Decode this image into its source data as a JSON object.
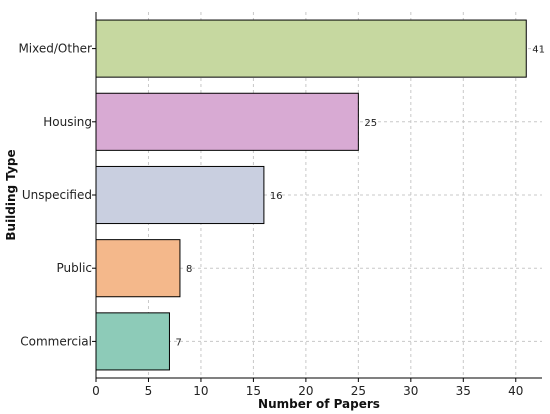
{
  "chart_data": {
    "type": "bar",
    "orientation": "horizontal",
    "categories": [
      "Mixed/Other",
      "Housing",
      "Unspecified",
      "Public",
      "Commercial"
    ],
    "values": [
      41,
      25,
      16,
      8,
      7
    ],
    "data_labels": [
      "41",
      "25",
      "16",
      "8",
      "7"
    ],
    "colors": [
      "#c6d8a0",
      "#d8aad3",
      "#c9cfe0",
      "#f4b88b",
      "#8dcbb8"
    ],
    "xlabel": "Number of Papers",
    "ylabel": "Building Type",
    "xlim": [
      0,
      42.5
    ],
    "xticks": [
      0,
      5,
      10,
      15,
      20,
      25,
      30,
      35,
      40
    ],
    "xtick_labels": [
      "0",
      "5",
      "10",
      "15",
      "20",
      "25",
      "30",
      "35",
      "40"
    ],
    "grid": true
  }
}
